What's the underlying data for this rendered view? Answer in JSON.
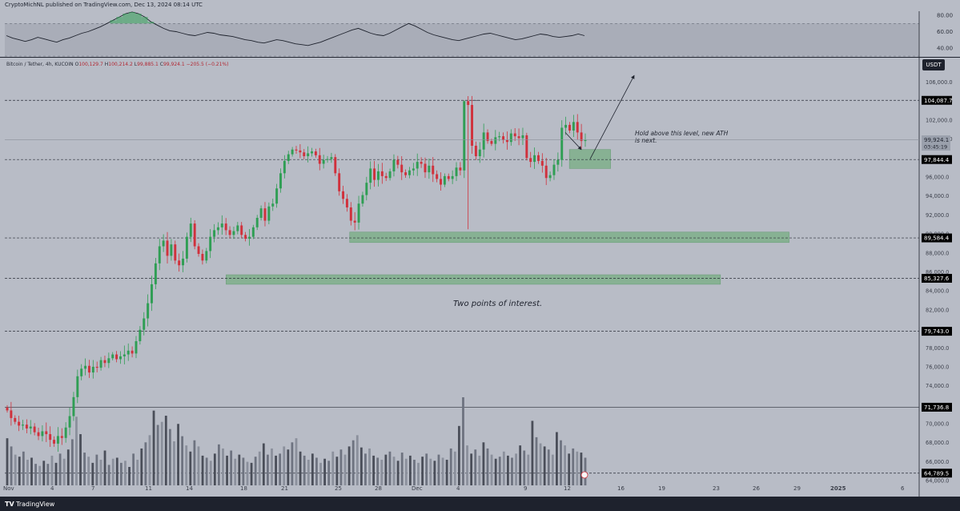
{
  "header": {
    "published_text": "CryptoMichNL published on TradingView.com, Dec 13, 2024 08:14 UTC"
  },
  "symbol": {
    "name": "Bitcoin / Tether, 4h, KUCOIN",
    "open_label": "O",
    "open": "100,129.7",
    "high_label": "H",
    "high": "100,214.2",
    "low_label": "L",
    "low": "99,885.1",
    "close_label": "C",
    "close": "99,924.1",
    "change": "−205.5 (−0.21%)"
  },
  "currency_badge": "USDT",
  "footer": {
    "brand": "TradingView",
    "brand_icon": "tradingview-logo-icon"
  },
  "colors": {
    "background": "#b8bcc6",
    "up_candle": "#2f9e54",
    "down_candle": "#d0313c",
    "zone_fill": "#7fb08b",
    "label_bg": "#000000",
    "dark_bar": "#1e222d"
  },
  "chart_data": [
    {
      "type": "line",
      "panel": "rsi",
      "y_ticks": [
        "80.00",
        "60.00",
        "40.00"
      ],
      "ylim": [
        30,
        85
      ],
      "levels": [
        70,
        30
      ],
      "values": [
        55,
        52,
        50,
        48,
        50,
        53,
        51,
        49,
        47,
        50,
        52,
        55,
        58,
        60,
        63,
        66,
        70,
        74,
        78,
        82,
        84,
        82,
        78,
        72,
        68,
        64,
        61,
        60,
        58,
        56,
        55,
        57,
        59,
        58,
        56,
        55,
        54,
        52,
        50,
        49,
        47,
        46,
        48,
        50,
        49,
        47,
        45,
        44,
        43,
        45,
        47,
        50,
        53,
        56,
        59,
        62,
        64,
        61,
        58,
        56,
        55,
        58,
        62,
        66,
        70,
        67,
        63,
        59,
        56,
        54,
        52,
        50,
        49,
        51,
        53,
        55,
        57,
        58,
        56,
        54,
        52,
        50,
        51,
        53,
        55,
        57,
        56,
        54,
        53,
        54,
        55,
        57,
        55
      ]
    },
    {
      "type": "candlestick",
      "panel": "price",
      "ylim": [
        63500,
        108500
      ],
      "y_ticks": [
        "106,000.0",
        "104,000.0",
        "102,000.0",
        "100,000.0",
        "98,000.0",
        "96,000.0",
        "94,000.0",
        "92,000.0",
        "90,000.0",
        "88,000.0",
        "86,000.0",
        "84,000.0",
        "82,000.0",
        "80,000.0",
        "78,000.0",
        "76,000.0",
        "74,000.0",
        "72,000.0",
        "70,000.0",
        "68,000.0",
        "66,000.0",
        "64,000.0"
      ],
      "x_ticks": [
        "Nov",
        "4",
        "7",
        "11",
        "14",
        "18",
        "21",
        "25",
        "28",
        "Dec",
        "4",
        "9",
        "12",
        "16",
        "19",
        "23",
        "26",
        "29",
        "2025",
        "6"
      ],
      "levels": [
        {
          "value": 104087.7,
          "label": "104,087.7",
          "style": "dashed"
        },
        {
          "value": 97844.4,
          "label": "97,844.4",
          "style": "dashed"
        },
        {
          "value": 89584.4,
          "label": "89,584.4",
          "style": "dashed"
        },
        {
          "value": 85327.6,
          "label": "85,327.6",
          "style": "dashed"
        },
        {
          "value": 79743.0,
          "label": "79,743.0",
          "style": "dashed"
        },
        {
          "value": 71736.8,
          "label": "71,736.8",
          "style": "solid"
        },
        {
          "value": 64789.5,
          "label": "64,789.5",
          "style": "dashed"
        }
      ],
      "current_price": {
        "value": 99924.1,
        "label": "99,924.1",
        "countdown": "03:45:19"
      },
      "zones": [
        {
          "from": 96900,
          "to": 98900,
          "start": "Dec 12",
          "end": "Dec 15"
        },
        {
          "from": 89100,
          "to": 90200,
          "start": "Nov 26",
          "end": "Dec 28"
        },
        {
          "from": 84700,
          "to": 85700,
          "start": "Nov 17",
          "end": "Dec 23"
        }
      ],
      "annotations": [
        {
          "text": "Hold above this level, new ATH is next.",
          "line1": "Hold above this level, new ATH",
          "line2": "is next."
        },
        {
          "text": "Two points of interest."
        }
      ],
      "prices": [
        71400,
        70600,
        70200,
        69800,
        69900,
        69500,
        69700,
        69100,
        68700,
        69200,
        68900,
        68300,
        67900,
        68700,
        68500,
        69600,
        70800,
        72800,
        75000,
        75800,
        76100,
        75400,
        76000,
        75900,
        76700,
        76400,
        76900,
        77300,
        76800,
        77100,
        77300,
        77700,
        77400,
        78700,
        79900,
        81100,
        82700,
        84700,
        86900,
        88700,
        89300,
        87700,
        88900,
        87200,
        86700,
        87400,
        89700,
        91100,
        88700,
        87900,
        87200,
        88200,
        89700,
        90400,
        90700,
        91100,
        90400,
        89900,
        90300,
        90900,
        89900,
        89500,
        89700,
        90700,
        91700,
        92700,
        91400,
        92900,
        93200,
        94800,
        96400,
        97700,
        98400,
        98900,
        98800,
        98600,
        98200,
        98500,
        98700,
        98300,
        97400,
        97800,
        97900,
        98100,
        96400,
        94500,
        93700,
        92800,
        91400,
        91200,
        93200,
        94100,
        95400,
        96900,
        95700,
        96600,
        96100,
        95900,
        96600,
        97800,
        97300,
        96500,
        96200,
        96700,
        96900,
        97600,
        97400,
        96500,
        97200,
        96300,
        95800,
        95200,
        96100,
        95800,
        96100,
        97000,
        96700,
        104000,
        103600,
        99300,
        98200,
        98900,
        100700,
        99800,
        99500,
        100200,
        100300,
        99900,
        99700,
        100600,
        100300,
        100100,
        100400,
        98000,
        97600,
        98300,
        97700,
        97200,
        95900,
        96200,
        97300,
        97800,
        101200,
        101500,
        100900,
        101800,
        100700,
        99800,
        99924
      ]
    },
    {
      "type": "bar",
      "panel": "volume",
      "values": [
        46,
        38,
        30,
        28,
        33,
        25,
        27,
        21,
        19,
        24,
        21,
        29,
        22,
        31,
        26,
        35,
        45,
        67,
        50,
        32,
        28,
        22,
        30,
        25,
        34,
        20,
        26,
        27,
        22,
        24,
        18,
        31,
        25,
        36,
        42,
        49,
        73,
        59,
        62,
        68,
        55,
        43,
        60,
        48,
        39,
        33,
        44,
        38,
        29,
        27,
        24,
        31,
        40,
        36,
        29,
        34,
        26,
        30,
        27,
        23,
        22,
        28,
        33,
        41,
        30,
        36,
        29,
        31,
        38,
        35,
        42,
        46,
        33,
        29,
        25,
        31,
        27,
        22,
        26,
        24,
        33,
        28,
        35,
        30,
        38,
        44,
        49,
        37,
        31,
        36,
        29,
        27,
        25,
        30,
        33,
        28,
        24,
        32,
        26,
        29,
        25,
        22,
        28,
        31,
        26,
        24,
        30,
        27,
        25,
        36,
        33,
        58,
        86,
        39,
        31,
        35,
        29,
        42,
        36,
        30,
        26,
        28,
        33,
        29,
        27,
        31,
        39,
        34,
        30,
        63,
        47,
        41,
        38,
        35,
        30,
        52,
        44,
        39,
        31,
        36,
        33,
        32,
        27
      ]
    }
  ]
}
